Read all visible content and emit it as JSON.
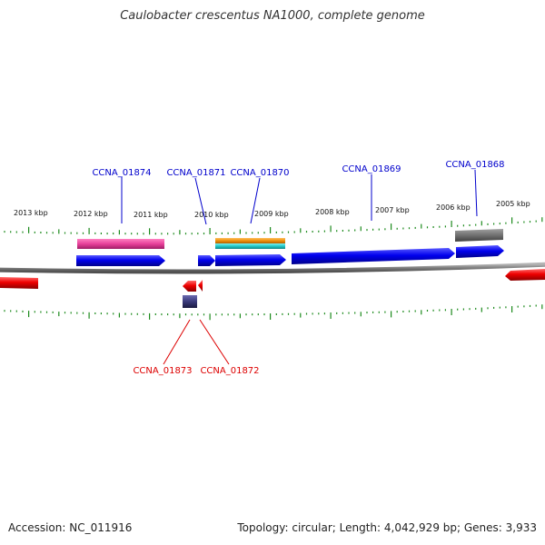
{
  "title": "Caulobacter crescentus NA1000, complete genome",
  "footer": {
    "accession": "Accession: NC_011916",
    "summary": "Topology: circular; Length: 4,042,929 bp; Genes: 3,933"
  },
  "colors": {
    "backbone": "#7d7d7d",
    "tick": "#1c8a1c",
    "forward_gene": "#0000ee",
    "reverse_gene": "#ee0000",
    "gene_label_forward": "#0000cc",
    "gene_label_reverse": "#dd0000",
    "magenta_feature": "#e8409a",
    "orange_feature": "#f0900a",
    "cyan_feature": "#20c8c8",
    "gray_feature": "#707070",
    "navy_feature": "#3a3a7a"
  },
  "scale": {
    "labels": [
      "2013 kbp",
      "2012 kbp",
      "2011 kbp",
      "2010 kbp",
      "2009 kbp",
      "2008 kbp",
      "2007 kbp",
      "2006 kbp",
      "2005 kbp"
    ]
  },
  "gene_labels": {
    "forward": [
      "CCNA_01874",
      "CCNA_01871",
      "CCNA_01870",
      "CCNA_01869",
      "CCNA_01868"
    ],
    "reverse": [
      "CCNA_01873",
      "CCNA_01872"
    ]
  }
}
